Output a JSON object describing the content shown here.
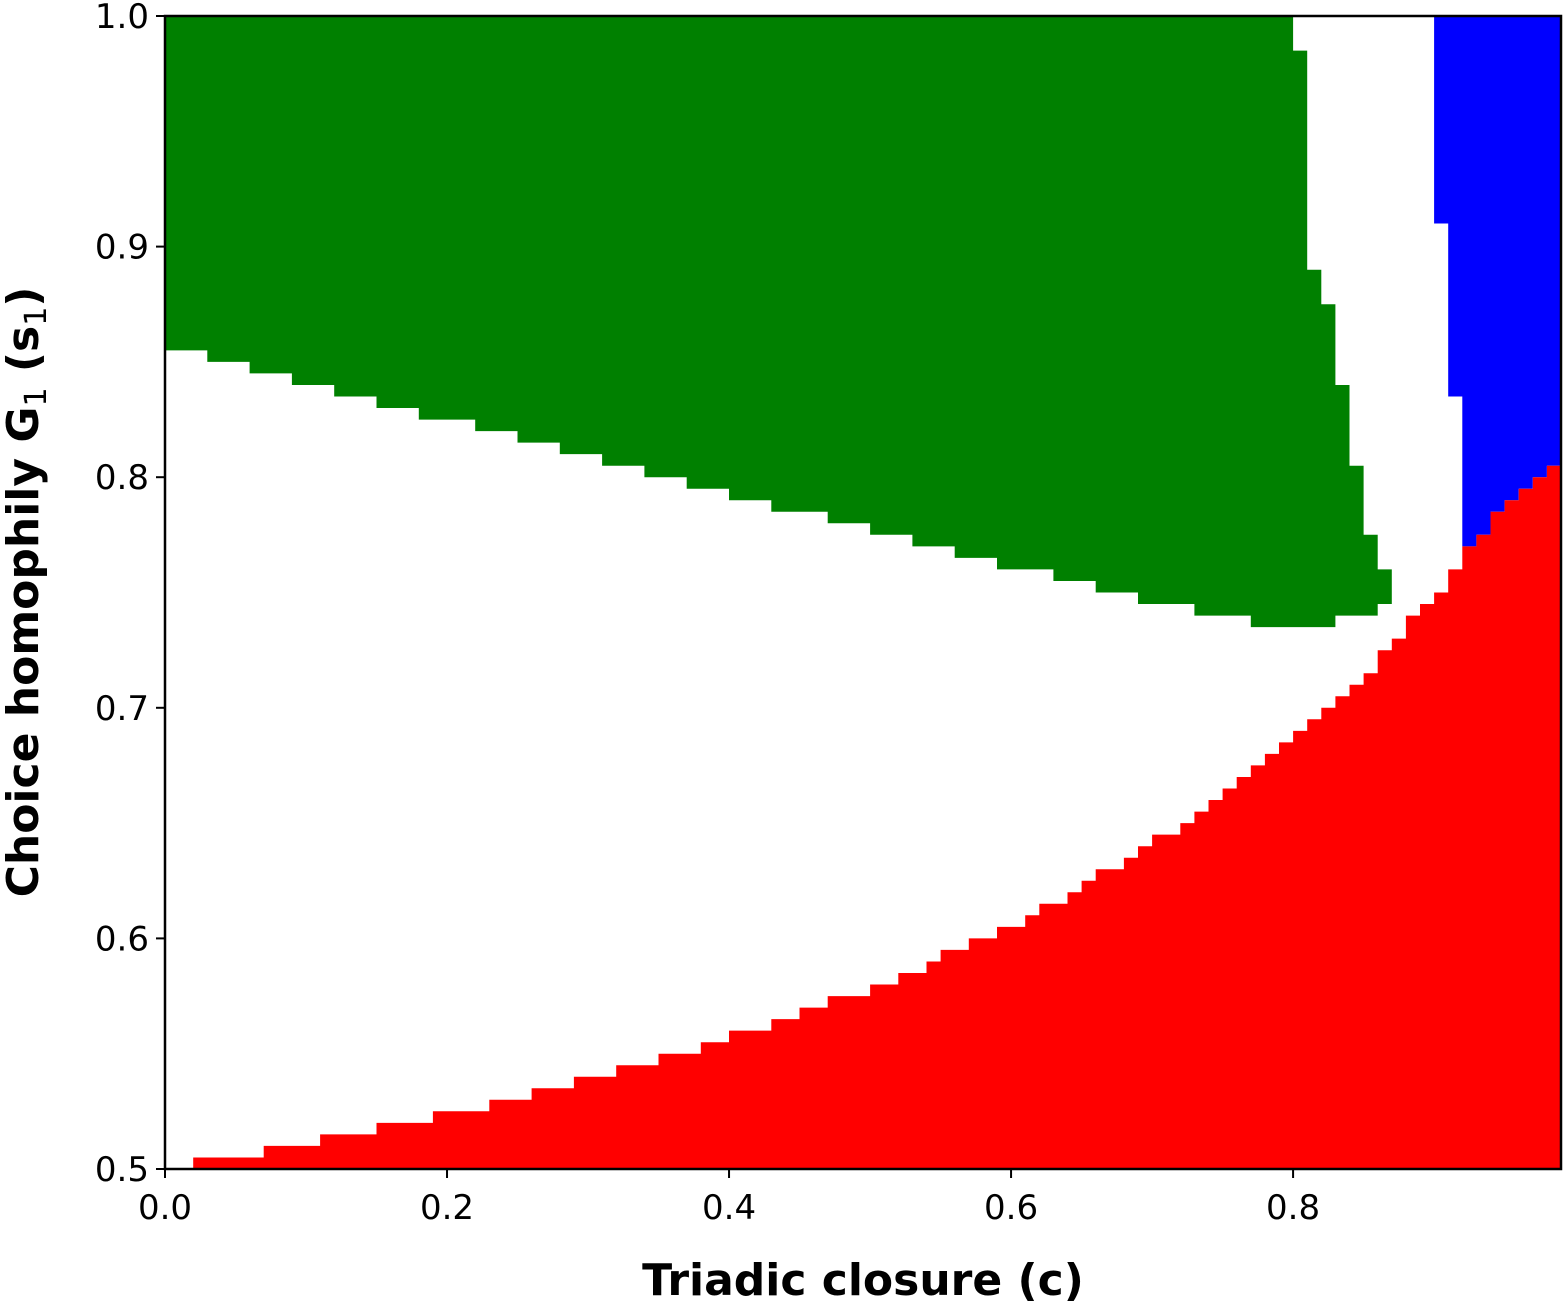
{
  "chart_data": {
    "type": "heatmap",
    "title": "",
    "xlabel": "Triadic closure (c)",
    "ylabel": {
      "before_sub1": "Choice homophily G",
      "sub1": "1",
      "middle": " (s",
      "sub2": "1",
      "after": ")"
    },
    "xlim": [
      0.0,
      0.99
    ],
    "ylim": [
      0.5,
      1.0
    ],
    "x_ticks": [
      "0.0",
      "0.2",
      "0.4",
      "0.6",
      "0.8"
    ],
    "y_ticks": [
      "0.5",
      "0.6",
      "0.7",
      "0.8",
      "0.9",
      "1.0"
    ],
    "grid": false,
    "colors": {
      "green": "#008000",
      "red": "#ff0000",
      "blue": "#0000ff",
      "background": "#ffffff"
    },
    "regions": [
      {
        "color": "green",
        "bottom_boundary": [
          [
            0.0,
            0.855
          ],
          [
            0.03,
            0.85
          ],
          [
            0.06,
            0.845
          ],
          [
            0.09,
            0.84
          ],
          [
            0.12,
            0.835
          ],
          [
            0.15,
            0.83
          ],
          [
            0.18,
            0.825
          ],
          [
            0.22,
            0.82
          ],
          [
            0.25,
            0.815
          ],
          [
            0.28,
            0.81
          ],
          [
            0.31,
            0.805
          ],
          [
            0.34,
            0.8
          ],
          [
            0.37,
            0.795
          ],
          [
            0.4,
            0.79
          ],
          [
            0.43,
            0.785
          ],
          [
            0.47,
            0.78
          ],
          [
            0.5,
            0.775
          ],
          [
            0.53,
            0.77
          ],
          [
            0.56,
            0.765
          ],
          [
            0.59,
            0.76
          ],
          [
            0.63,
            0.755
          ],
          [
            0.66,
            0.75
          ],
          [
            0.69,
            0.745
          ],
          [
            0.73,
            0.74
          ],
          [
            0.77,
            0.735
          ],
          [
            0.83,
            0.74
          ],
          [
            0.86,
            0.745
          ]
        ],
        "right_boundary": [
          [
            0.8,
            1.0
          ],
          [
            0.81,
            0.985
          ],
          [
            0.82,
            0.89
          ],
          [
            0.83,
            0.875
          ],
          [
            0.84,
            0.84
          ],
          [
            0.85,
            0.805
          ],
          [
            0.86,
            0.775
          ],
          [
            0.87,
            0.76
          ]
        ]
      },
      {
        "color": "blue",
        "left_boundary": [
          [
            0.9,
            1.0
          ],
          [
            0.9,
            0.91
          ],
          [
            0.91,
            0.91
          ],
          [
            0.91,
            0.835
          ],
          [
            0.92,
            0.835
          ],
          [
            0.92,
            0.775
          ]
        ]
      },
      {
        "color": "red",
        "top_boundary": [
          [
            0.02,
            0.505
          ],
          [
            0.07,
            0.51
          ],
          [
            0.11,
            0.515
          ],
          [
            0.15,
            0.52
          ],
          [
            0.19,
            0.525
          ],
          [
            0.23,
            0.53
          ],
          [
            0.26,
            0.535
          ],
          [
            0.29,
            0.54
          ],
          [
            0.32,
            0.545
          ],
          [
            0.35,
            0.55
          ],
          [
            0.38,
            0.555
          ],
          [
            0.4,
            0.56
          ],
          [
            0.43,
            0.565
          ],
          [
            0.45,
            0.57
          ],
          [
            0.47,
            0.575
          ],
          [
            0.5,
            0.58
          ],
          [
            0.52,
            0.585
          ],
          [
            0.54,
            0.59
          ],
          [
            0.55,
            0.595
          ],
          [
            0.57,
            0.6
          ],
          [
            0.59,
            0.605
          ],
          [
            0.61,
            0.61
          ],
          [
            0.62,
            0.615
          ],
          [
            0.64,
            0.62
          ],
          [
            0.65,
            0.625
          ],
          [
            0.66,
            0.63
          ],
          [
            0.68,
            0.635
          ],
          [
            0.69,
            0.64
          ],
          [
            0.7,
            0.645
          ],
          [
            0.72,
            0.65
          ],
          [
            0.73,
            0.655
          ],
          [
            0.74,
            0.66
          ],
          [
            0.75,
            0.665
          ],
          [
            0.76,
            0.67
          ],
          [
            0.77,
            0.675
          ],
          [
            0.78,
            0.68
          ],
          [
            0.79,
            0.685
          ],
          [
            0.8,
            0.69
          ],
          [
            0.81,
            0.695
          ],
          [
            0.82,
            0.7
          ],
          [
            0.83,
            0.705
          ],
          [
            0.84,
            0.71
          ],
          [
            0.85,
            0.715
          ],
          [
            0.86,
            0.72
          ],
          [
            0.86,
            0.725
          ],
          [
            0.87,
            0.73
          ],
          [
            0.88,
            0.735
          ],
          [
            0.88,
            0.74
          ],
          [
            0.89,
            0.745
          ],
          [
            0.9,
            0.75
          ],
          [
            0.91,
            0.76
          ],
          [
            0.92,
            0.77
          ],
          [
            0.93,
            0.775
          ],
          [
            0.94,
            0.785
          ],
          [
            0.95,
            0.79
          ],
          [
            0.96,
            0.795
          ],
          [
            0.97,
            0.8
          ],
          [
            0.98,
            0.805
          ],
          [
            0.99,
            0.81
          ]
        ]
      }
    ]
  }
}
